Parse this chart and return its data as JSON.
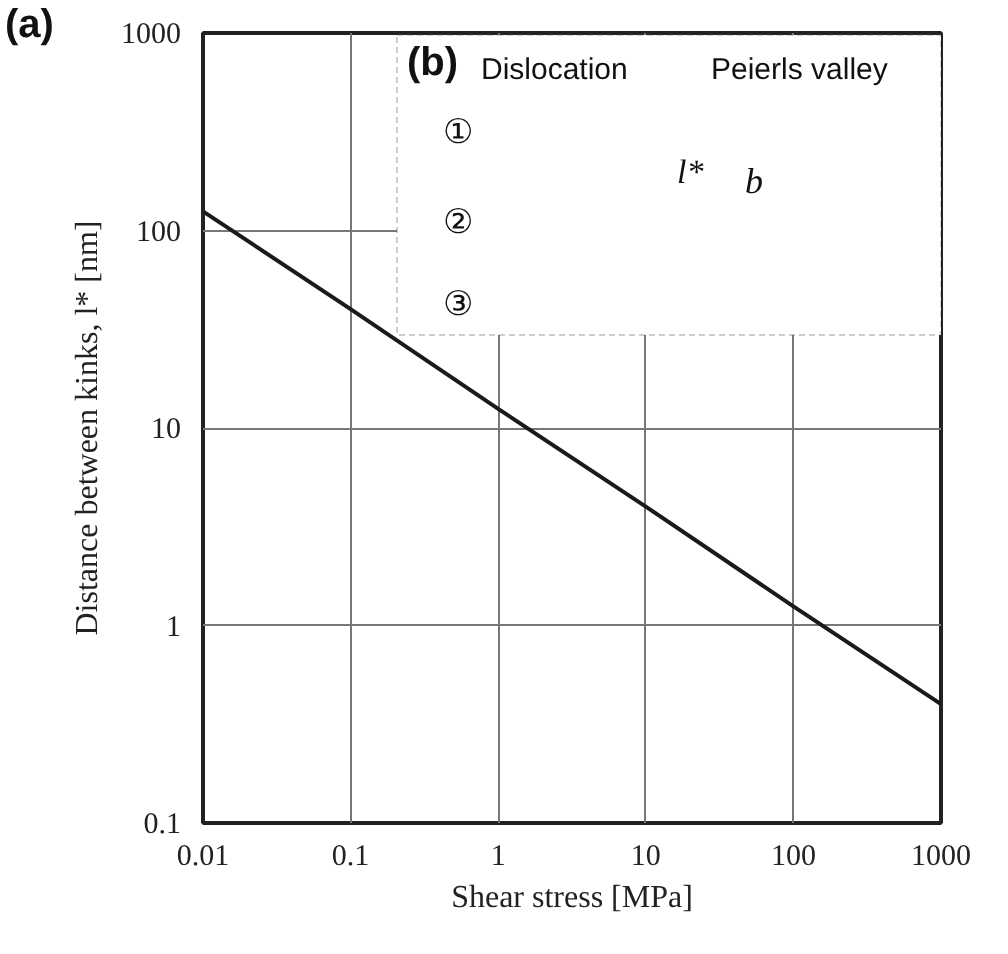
{
  "chart_data": {
    "type": "line",
    "xlabel": "Shear stress [MPa]",
    "ylabel": "Distance between kinks, l* [nm]",
    "x": [
      0.01,
      0.1,
      1,
      10,
      100,
      1000
    ],
    "series": [
      {
        "color": "#1a1a1a",
        "values": [
          125,
          40,
          12.5,
          4,
          1.25,
          0.4
        ]
      }
    ],
    "log": "xy",
    "xlim": [
      0.01,
      1000
    ],
    "ylim": [
      0.1,
      1000
    ],
    "xticks": [
      0.01,
      0.1,
      1,
      10,
      100,
      1000
    ],
    "yticks": [
      0.1,
      1,
      10,
      100,
      1000
    ],
    "grid": true,
    "line_style": "solid",
    "annotations": [
      "(a)",
      "(b)",
      "Dislocation",
      "Peierls valley",
      "①",
      "②",
      "③",
      "l*",
      "b"
    ]
  }
}
